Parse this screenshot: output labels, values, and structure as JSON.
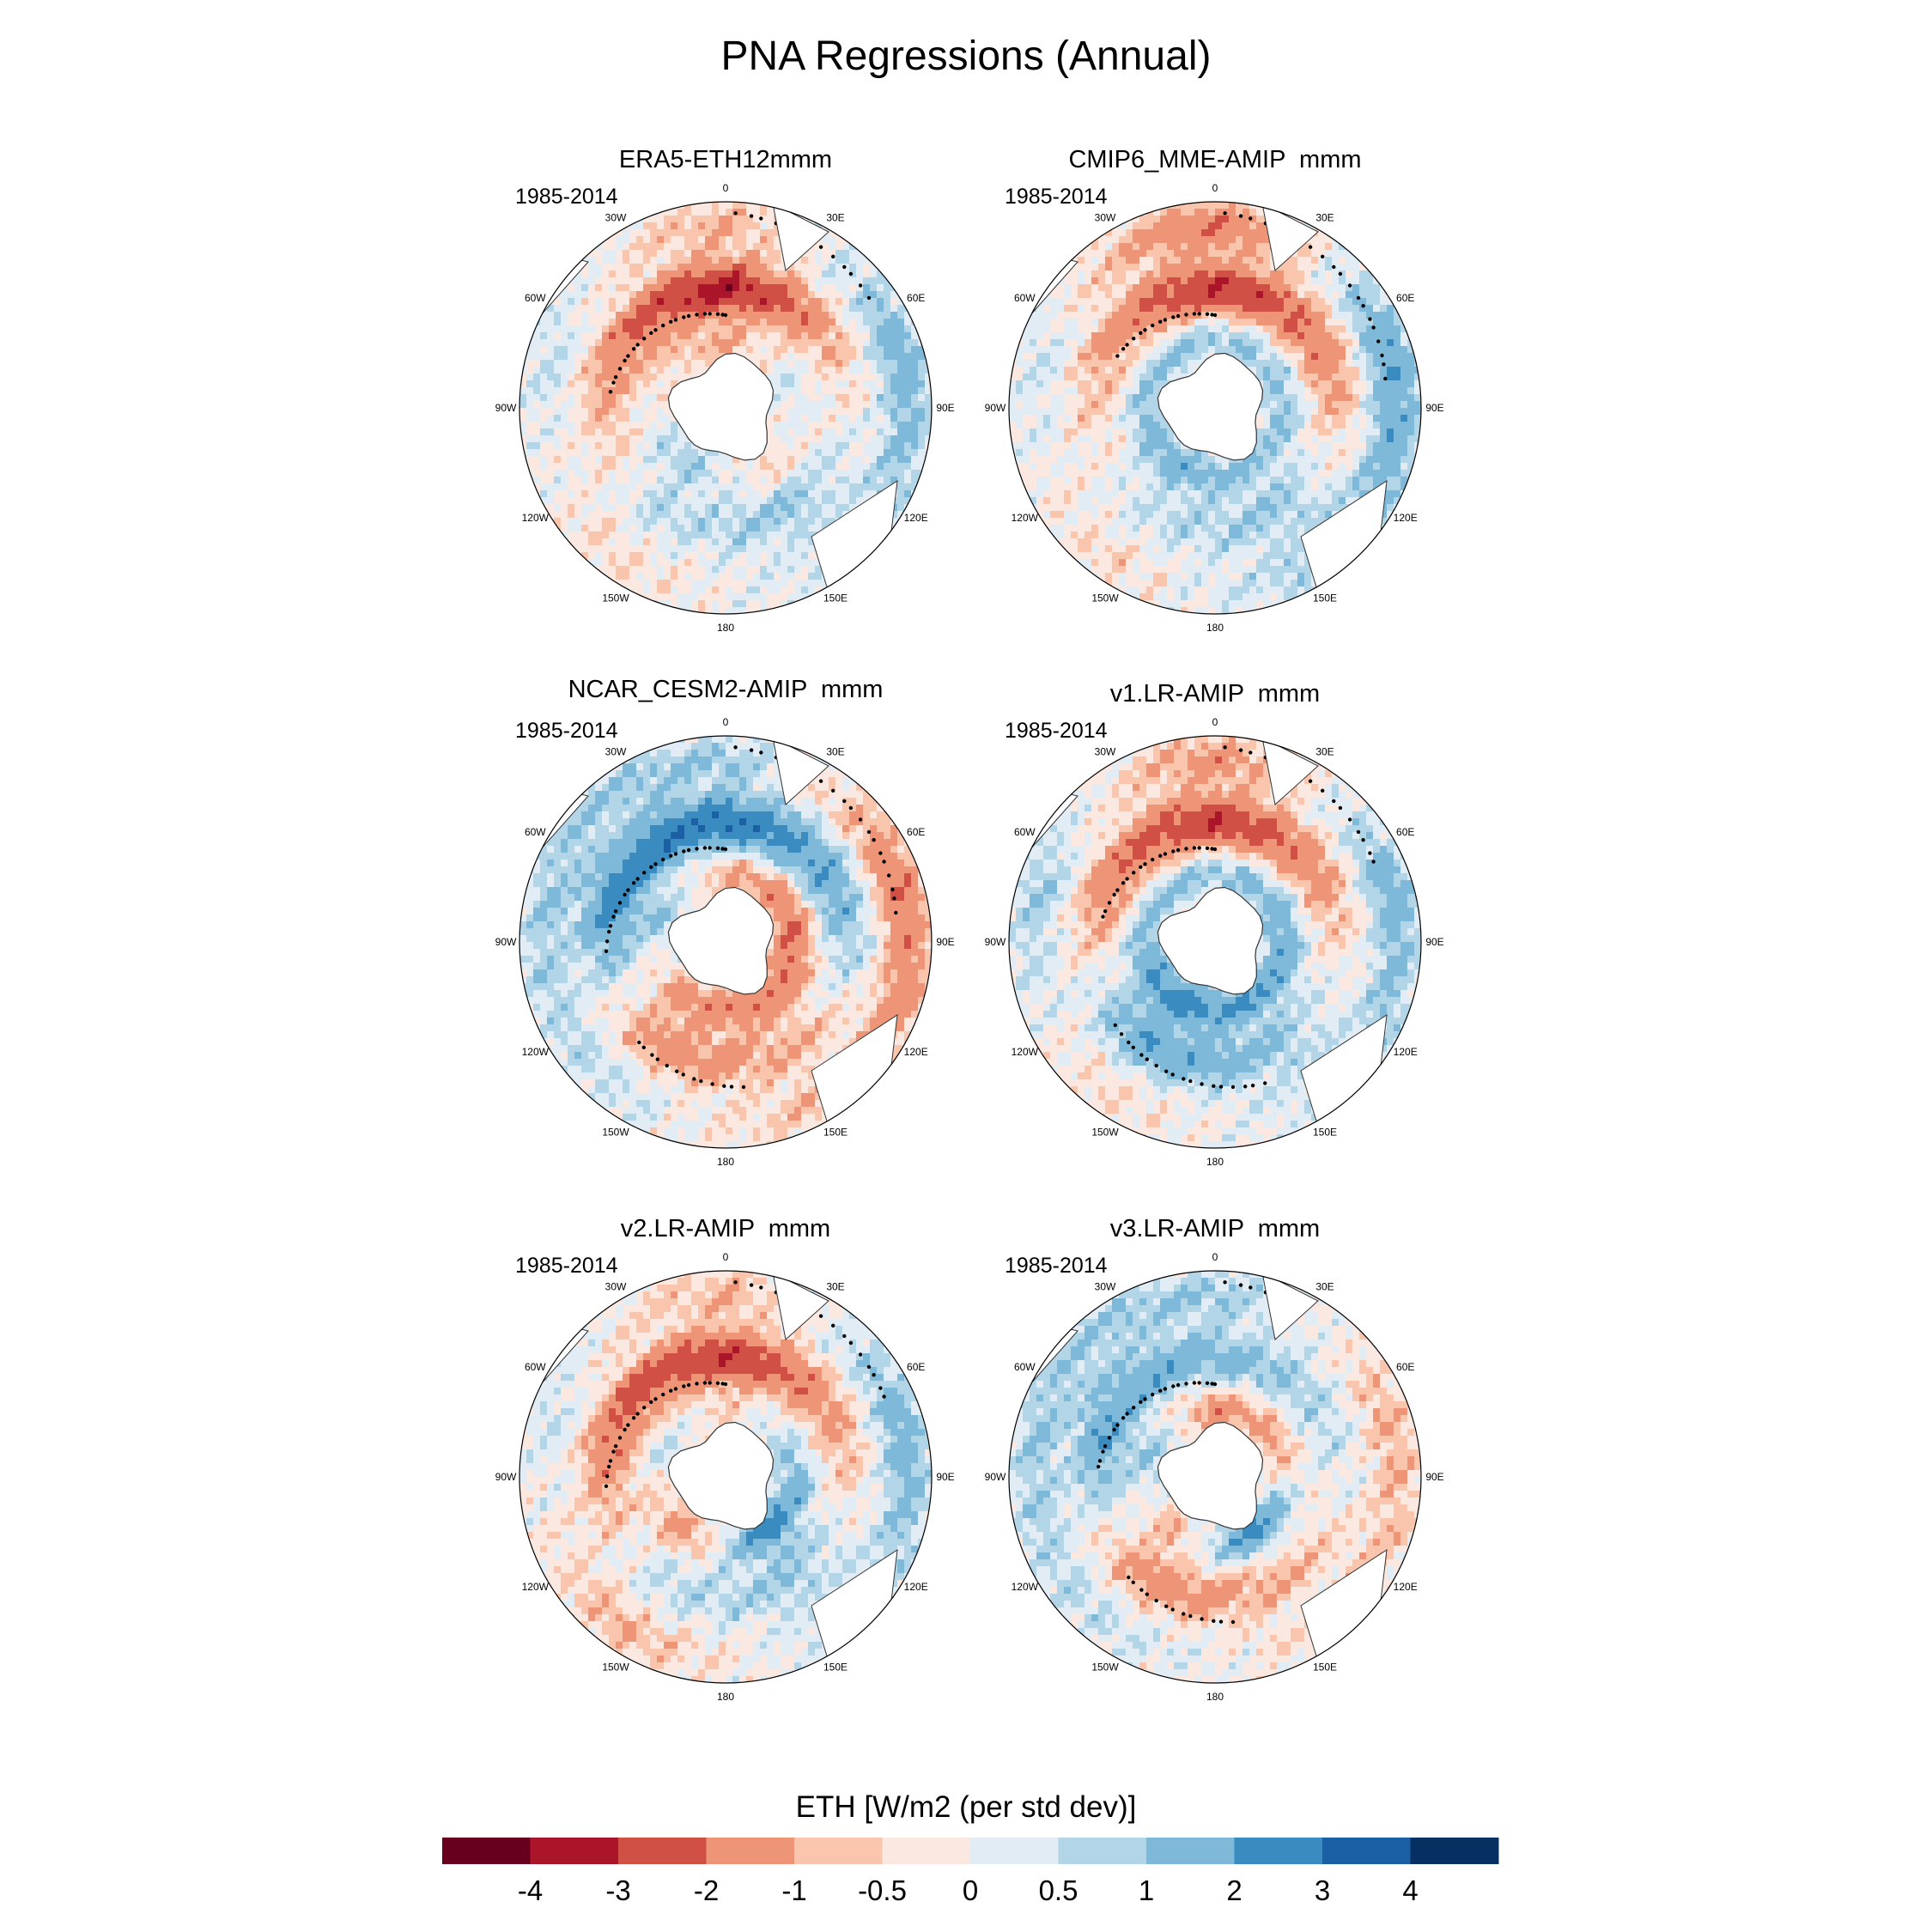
{
  "title": "PNA Regressions (Annual)",
  "panels": [
    {
      "id": "era5",
      "title": "ERA5-ETH12mmm",
      "period": "1985-2014",
      "pattern": {
        "r1": [
          -1,
          0.5,
          -0.6,
          1,
          -0.4
        ],
        "r2": [
          -3.5,
          -0.5,
          1,
          0.5,
          -1.5
        ],
        "r3": [
          -1,
          1.5,
          0.5,
          -0.5,
          0.5
        ]
      }
    },
    {
      "id": "cmip6",
      "title": "CMIP6_MME-AMIP  mmm",
      "period": "1985-2014",
      "pattern": {
        "r1": [
          1,
          1,
          1,
          1.5,
          1
        ],
        "r2": [
          -3,
          -1.5,
          1,
          0.5,
          -1
        ],
        "r3": [
          -2,
          2,
          1,
          -0.5,
          0.5
        ]
      }
    },
    {
      "id": "cesm2",
      "title": "NCAR_CESM2-AMIP  mmm",
      "period": "1985-2014",
      "pattern": {
        "r1": [
          -1,
          -2,
          -2,
          -1.5,
          1
        ],
        "r2": [
          3,
          1.5,
          -1,
          -1.5,
          2.5
        ],
        "r3": [
          1,
          -2,
          -1,
          0.5,
          1
        ]
      }
    },
    {
      "id": "v1",
      "title": "v1.LR-AMIP  mmm",
      "period": "1985-2014",
      "pattern": {
        "r1": [
          1,
          1.5,
          2,
          2.5,
          1
        ],
        "r2": [
          -3,
          -1,
          1,
          2,
          -1.5
        ],
        "r3": [
          -1.5,
          1.5,
          0.5,
          -0.5,
          1
        ]
      }
    },
    {
      "id": "v2",
      "title": "v2.LR-AMIP  mmm",
      "period": "1985-2014",
      "pattern": {
        "r1": [
          -0.5,
          1,
          2.5,
          -1.5,
          0.5
        ],
        "r2": [
          -3,
          -1,
          1,
          0.5,
          -2
        ],
        "r3": [
          -1,
          1.5,
          0.5,
          -1,
          0.5
        ]
      }
    },
    {
      "id": "v3",
      "title": "v3.LR-AMIP  mmm",
      "period": "1985-2014",
      "pattern": {
        "r1": [
          -1.5,
          -1,
          2.5,
          -1,
          1
        ],
        "r2": [
          1.5,
          0.5,
          -1,
          -1.5,
          2
        ],
        "r3": [
          1,
          -1,
          -0.5,
          0.5,
          1
        ]
      }
    }
  ],
  "lon_labels": [
    "0",
    "30E",
    "60E",
    "90E",
    "120E",
    "150E",
    "180",
    "150W",
    "120W",
    "90W",
    "60W",
    "30W"
  ],
  "colorbar": {
    "title": "ETH [W/m2 (per std dev)]",
    "colors": [
      "#67001f",
      "#ab1529",
      "#d15045",
      "#ed9576",
      "#f9c6ad",
      "#fbe9e1",
      "#e1ecf4",
      "#b3d5e8",
      "#7eb9d9",
      "#3a8cc0",
      "#1b5fa5",
      "#053061"
    ],
    "labels": [
      "-4",
      "-3",
      "-2",
      "-1",
      "-0.5",
      "0",
      "0.5",
      "1",
      "2",
      "3",
      "4"
    ],
    "levels": [
      -4,
      -3,
      -2,
      -1,
      -0.5,
      0,
      0.5,
      1,
      2,
      3,
      4
    ]
  }
}
